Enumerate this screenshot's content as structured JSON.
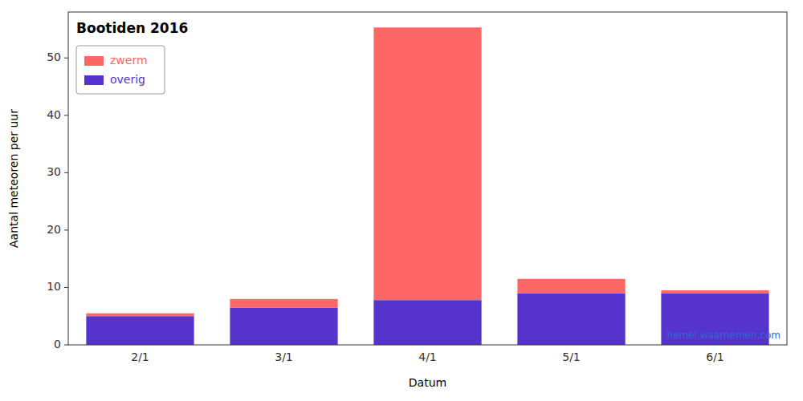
{
  "chart_data": {
    "type": "bar",
    "stacked": true,
    "title": "Bootiden 2016",
    "xlabel": "Datum",
    "ylabel": "Aantal meteoren per uur",
    "categories": [
      "2/1",
      "3/1",
      "4/1",
      "5/1",
      "6/1"
    ],
    "series": [
      {
        "name": "overig",
        "color": "#5533cc",
        "values": [
          5.0,
          6.5,
          7.8,
          9.0,
          9.0
        ]
      },
      {
        "name": "zwerm",
        "color": "#ff6666",
        "values": [
          0.5,
          1.5,
          47.5,
          2.5,
          0.5
        ]
      }
    ],
    "ylim": [
      0,
      58
    ],
    "yticks": [
      0,
      10,
      20,
      30,
      40,
      50
    ],
    "grid": false,
    "legend": "upper left",
    "annotations": [
      "hemel.waarnemen.com"
    ]
  }
}
